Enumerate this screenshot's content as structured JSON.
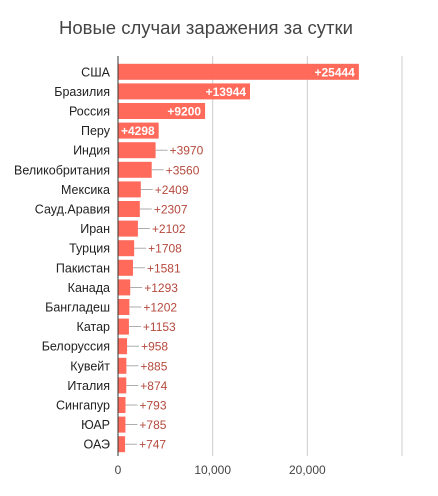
{
  "chart_data": {
    "type": "bar",
    "orientation": "horizontal",
    "title": "Новые случаи заражения за сутки",
    "xlabel": "",
    "ylabel": "",
    "xlim": [
      0,
      30000
    ],
    "x_ticks": [
      0,
      10000,
      20000
    ],
    "x_tick_labels": [
      "0",
      "10,000",
      "20,000"
    ],
    "grid": true,
    "legend": "none",
    "categories": [
      "США",
      "Бразилия",
      "Россия",
      "Перу",
      "Индия",
      "Великобритания",
      "Мексика",
      "Сауд.Аравия",
      "Иран",
      "Турция",
      "Пакистан",
      "Канада",
      "Бангладеш",
      "Катар",
      "Белоруссия",
      "Кувейт",
      "Италия",
      "Сингапур",
      "ЮАР",
      "ОАЭ"
    ],
    "values": [
      25444,
      13944,
      9200,
      4298,
      3970,
      3560,
      2409,
      2307,
      2102,
      1708,
      1581,
      1293,
      1202,
      1153,
      958,
      885,
      874,
      793,
      785,
      747
    ],
    "data_labels": [
      "+25444",
      "+13944",
      "+9200",
      "+4298",
      "+3970",
      "+3560",
      "+2409",
      "+2307",
      "+2102",
      "+1708",
      "+1581",
      "+1293",
      "+1202",
      "+1153",
      "+958",
      "+885",
      "+874",
      "+793",
      "+785",
      "+747"
    ],
    "colors": {
      "bar": "#ff6a5b",
      "label_inside": "#ffffff",
      "label_outside": "#b5493d",
      "grid": "#cccccc",
      "axis": "#333333",
      "category_text": "#222222",
      "tick_text": "#444444"
    }
  }
}
